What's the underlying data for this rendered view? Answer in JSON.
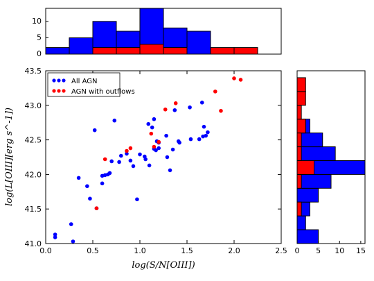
{
  "colors": {
    "all": "#0000ff",
    "outflow": "#ff0000",
    "axis": "#000000"
  },
  "legend": {
    "placement": "upper-left",
    "entries": [
      "All AGN",
      "AGN with outflows"
    ]
  },
  "axes": {
    "xlabel": "log(S/N[OIII])",
    "ylabel": "log(L[OIII][erg s^-1])",
    "xticks": [
      "0.0",
      "0.5",
      "1.0",
      "1.5",
      "2.0",
      "2.5"
    ],
    "yticks": [
      "41.0",
      "41.5",
      "42.0",
      "42.5",
      "43.0",
      "43.5"
    ],
    "top_hist_yticks": [
      "0",
      "5",
      "10"
    ],
    "right_hist_xticks": [
      "0",
      "5",
      "10",
      "15"
    ]
  },
  "chart_data": [
    {
      "type": "scatter",
      "xlim": [
        0,
        2.5
      ],
      "ylim": [
        41.0,
        43.5
      ],
      "grid": false,
      "series": [
        {
          "name": "All AGN",
          "color": "#0000ff",
          "points": [
            [
              0.1,
              41.13
            ],
            [
              0.1,
              41.09
            ],
            [
              0.27,
              41.28
            ],
            [
              0.29,
              41.03
            ],
            [
              0.35,
              41.95
            ],
            [
              0.44,
              41.83
            ],
            [
              0.47,
              41.65
            ],
            [
              0.52,
              42.64
            ],
            [
              0.54,
              41.51
            ],
            [
              0.6,
              41.98
            ],
            [
              0.6,
              41.87
            ],
            [
              0.63,
              41.99
            ],
            [
              0.66,
              42.0
            ],
            [
              0.68,
              42.02
            ],
            [
              0.7,
              42.19
            ],
            [
              0.73,
              42.78
            ],
            [
              0.78,
              42.18
            ],
            [
              0.8,
              42.27
            ],
            [
              0.86,
              42.3
            ],
            [
              0.9,
              42.2
            ],
            [
              0.93,
              42.12
            ],
            [
              0.97,
              41.64
            ],
            [
              1.0,
              42.29
            ],
            [
              1.05,
              42.26
            ],
            [
              1.06,
              42.22
            ],
            [
              1.09,
              42.73
            ],
            [
              1.1,
              42.13
            ],
            [
              1.13,
              42.68
            ],
            [
              1.15,
              42.8
            ],
            [
              1.15,
              42.37
            ],
            [
              1.17,
              42.35
            ],
            [
              1.18,
              42.48
            ],
            [
              1.2,
              42.38
            ],
            [
              1.2,
              42.46
            ],
            [
              1.28,
              42.56
            ],
            [
              1.29,
              42.25
            ],
            [
              1.32,
              42.06
            ],
            [
              1.35,
              42.36
            ],
            [
              1.37,
              42.93
            ],
            [
              1.41,
              42.48
            ],
            [
              1.42,
              42.46
            ],
            [
              1.53,
              42.97
            ],
            [
              1.54,
              42.51
            ],
            [
              1.63,
              42.51
            ],
            [
              1.66,
              43.04
            ],
            [
              1.67,
              42.55
            ],
            [
              1.68,
              42.69
            ],
            [
              1.7,
              42.56
            ],
            [
              1.72,
              42.61
            ]
          ]
        },
        {
          "name": "AGN with outflows",
          "color": "#ff0000",
          "points": [
            [
              0.54,
              41.51
            ],
            [
              0.63,
              42.22
            ],
            [
              0.86,
              42.34
            ],
            [
              0.9,
              42.38
            ],
            [
              1.12,
              42.59
            ],
            [
              1.15,
              42.4
            ],
            [
              1.2,
              42.47
            ],
            [
              1.27,
              42.94
            ],
            [
              1.38,
              43.03
            ],
            [
              1.8,
              43.2
            ],
            [
              1.86,
              42.92
            ],
            [
              2.0,
              43.39
            ],
            [
              2.07,
              43.37
            ]
          ]
        }
      ]
    },
    {
      "type": "bar",
      "orientation": "vertical",
      "xlim": [
        0,
        2.5
      ],
      "ylim": [
        0,
        14
      ],
      "bin_edges": [
        0.0,
        0.25,
        0.5,
        0.75,
        1.0,
        1.25,
        1.5,
        1.75,
        2.0,
        2.25
      ],
      "series": [
        {
          "name": "All AGN",
          "color": "#0000ff",
          "values": [
            2,
            5,
            10,
            7,
            14,
            8,
            7,
            0,
            0
          ]
        },
        {
          "name": "AGN with outflows",
          "color": "#ff0000",
          "values": [
            0,
            0,
            2,
            2,
            3,
            2,
            0,
            2,
            2
          ]
        }
      ]
    },
    {
      "type": "bar",
      "orientation": "horizontal",
      "xlim": [
        0,
        16
      ],
      "ylim": [
        41.0,
        43.5
      ],
      "bin_edges": [
        41.0,
        41.2,
        41.4,
        41.6,
        41.8,
        42.0,
        42.2,
        42.4,
        42.6,
        42.8,
        43.0,
        43.2,
        43.4
      ],
      "series": [
        {
          "name": "All AGN",
          "color": "#0000ff",
          "values": [
            5,
            2,
            3,
            5,
            8,
            16,
            9,
            6,
            3,
            0,
            0,
            0
          ]
        },
        {
          "name": "AGN with outflows",
          "color": "#ff0000",
          "values": [
            0,
            0,
            1,
            0,
            1,
            4,
            1,
            1,
            2,
            1,
            2,
            2
          ]
        }
      ]
    }
  ]
}
